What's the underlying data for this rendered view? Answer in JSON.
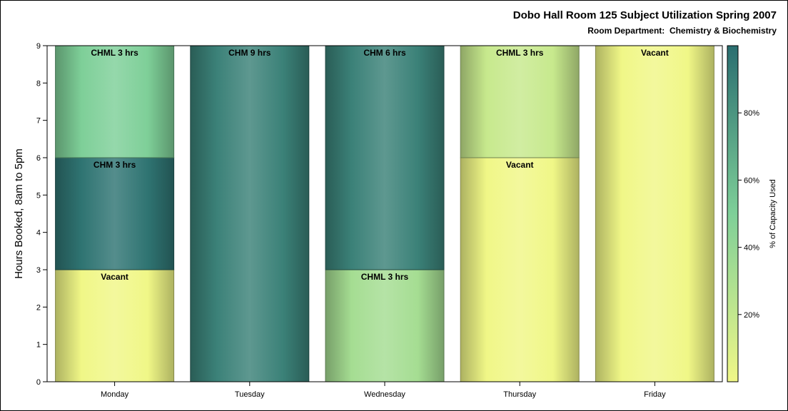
{
  "chart_data": {
    "type": "bar",
    "stacked": true,
    "title": "Dobo Hall Room 125 Subject Utilization Spring 2007",
    "subtitle": "Room Department:  Chemistry & Biochemistry",
    "ylabel": "Hours Booked, 8am to 5pm",
    "ylim": [
      0,
      9
    ],
    "yticks": [
      "0",
      "1",
      "2",
      "3",
      "4",
      "5",
      "6",
      "7",
      "8",
      "9"
    ],
    "categories": [
      "Monday",
      "Tuesday",
      "Wednesday",
      "Thursday",
      "Friday"
    ],
    "bars": [
      {
        "day": "Monday",
        "segments": [
          {
            "label": "Vacant",
            "hours": 3,
            "pct": 0
          },
          {
            "label": "CHM 3 hrs",
            "hours": 3,
            "pct": 97
          },
          {
            "label": "CHML 3 hrs",
            "hours": 3,
            "pct": 50
          }
        ]
      },
      {
        "day": "Tuesday",
        "segments": [
          {
            "label": "CHM 9 hrs",
            "hours": 9,
            "pct": 90
          }
        ]
      },
      {
        "day": "Wednesday",
        "segments": [
          {
            "label": "CHML 3 hrs",
            "hours": 3,
            "pct": 33
          },
          {
            "label": "CHM 6 hrs",
            "hours": 6,
            "pct": 90
          }
        ]
      },
      {
        "day": "Thursday",
        "segments": [
          {
            "label": "Vacant",
            "hours": 6,
            "pct": 0
          },
          {
            "label": "CHML 3 hrs",
            "hours": 3,
            "pct": 18
          }
        ]
      },
      {
        "day": "Friday",
        "segments": [
          {
            "label": "Vacant",
            "hours": 9,
            "pct": 0
          }
        ]
      }
    ],
    "colorbar": {
      "title": "% of Capacity Used",
      "ticks": [
        {
          "value": 20,
          "label": "20%"
        },
        {
          "value": 40,
          "label": "40%"
        },
        {
          "value": 60,
          "label": "60%"
        },
        {
          "value": 80,
          "label": "80%"
        }
      ],
      "range": [
        0,
        100
      ],
      "low_color": "#f0f787",
      "mid_color": "#7ecf98",
      "high_color": "#2a6e70"
    },
    "grid": false,
    "legend_position": "right"
  }
}
